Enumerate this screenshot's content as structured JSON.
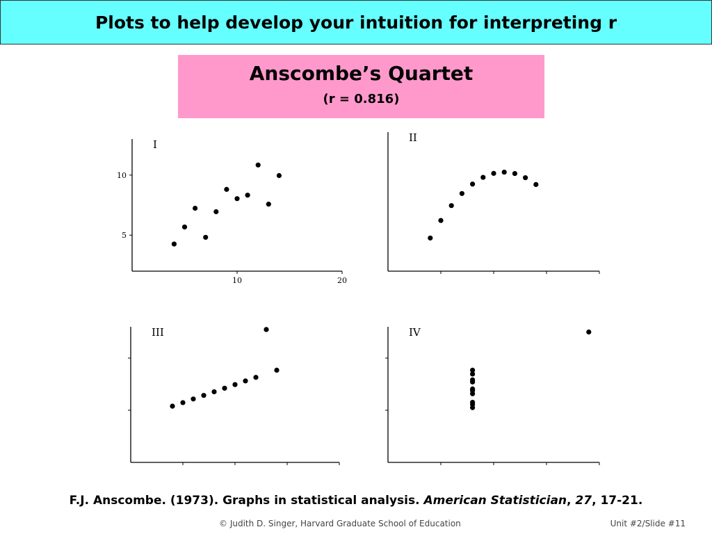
{
  "header": {
    "title": "Plots to help develop your intuition for interpreting r"
  },
  "subtitle": {
    "main": "Anscombe’s Quartet",
    "r": "(r = 0.816)"
  },
  "citation": {
    "prefix": "F.J. Anscombe. (1973). Graphs in statistical analysis. ",
    "journal": "American Statistician",
    "sep": ", ",
    "volume": "27",
    "suffix": ", 17-21."
  },
  "footer": {
    "left": "© Judith D. Singer, Harvard Graduate School of Education",
    "right": "Unit #2/Slide #11"
  },
  "chart_data": [
    {
      "type": "scatter",
      "panel_label": "I",
      "x": [
        10,
        8,
        13,
        9,
        11,
        14,
        6,
        4,
        12,
        7,
        5
      ],
      "y": [
        8.04,
        6.95,
        7.58,
        8.81,
        8.33,
        9.96,
        7.24,
        4.26,
        10.84,
        4.82,
        5.68
      ],
      "xlim": [
        0,
        20
      ],
      "ylim": [
        2,
        13
      ],
      "xticks": [
        10,
        20
      ],
      "xtick_labels": [
        "10",
        "20"
      ],
      "yticks": [
        5,
        10
      ],
      "ytick_labels": [
        "5",
        "10"
      ]
    },
    {
      "type": "scatter",
      "panel_label": "II",
      "x": [
        10,
        8,
        13,
        9,
        11,
        14,
        6,
        4,
        12,
        7,
        5
      ],
      "y": [
        9.14,
        8.14,
        8.74,
        8.77,
        9.26,
        8.1,
        6.13,
        3.1,
        9.13,
        7.26,
        4.74
      ],
      "xlim": [
        0,
        20
      ],
      "ylim": [
        0,
        13
      ],
      "xticks": [
        5,
        10,
        15,
        20
      ],
      "xtick_labels": [],
      "yticks": [],
      "ytick_labels": []
    },
    {
      "type": "scatter",
      "panel_label": "III",
      "x": [
        10,
        8,
        13,
        9,
        11,
        14,
        6,
        4,
        12,
        7,
        5
      ],
      "y": [
        7.46,
        6.77,
        12.74,
        7.11,
        7.81,
        8.84,
        6.08,
        5.39,
        8.15,
        6.42,
        5.73
      ],
      "xlim": [
        0,
        20
      ],
      "ylim": [
        0,
        13
      ],
      "xticks": [
        5,
        10,
        15,
        20
      ],
      "xtick_labels": [],
      "yticks": [
        5,
        10
      ],
      "ytick_labels": []
    },
    {
      "type": "scatter",
      "panel_label": "IV",
      "x": [
        8,
        8,
        8,
        8,
        8,
        8,
        8,
        19,
        8,
        8,
        8
      ],
      "y": [
        6.58,
        5.76,
        7.71,
        8.84,
        8.47,
        7.04,
        5.25,
        12.5,
        5.56,
        7.91,
        6.89
      ],
      "xlim": [
        0,
        20
      ],
      "ylim": [
        0,
        13
      ],
      "xticks": [
        5,
        10,
        15,
        20
      ],
      "xtick_labels": [],
      "yticks": [
        5,
        10
      ],
      "ytick_labels": []
    }
  ]
}
